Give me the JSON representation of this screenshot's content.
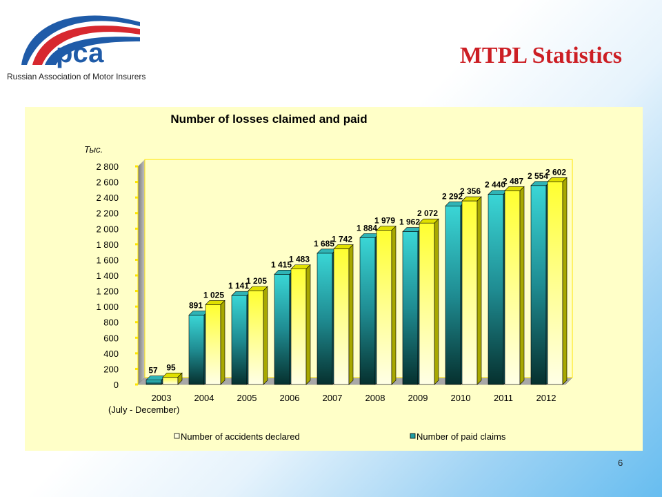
{
  "header": {
    "logo_text": "рса",
    "logo_caption": "Russian Association of Motor Insurers",
    "slide_title": "MTPL Statistics"
  },
  "footer": {
    "page_number": "6"
  },
  "colors": {
    "title_red": "#cc1e24",
    "chart_background": "#ffffc8",
    "declared_series": "#ffff33",
    "paid_series": "#33c8c8"
  },
  "chart_data": {
    "type": "bar",
    "title": "Number of losses claimed and paid",
    "ylabel": "Тыс.",
    "xlabel": "",
    "ylim": [
      0,
      2800
    ],
    "yticks": [
      0,
      200,
      400,
      600,
      800,
      1000,
      1200,
      1400,
      1600,
      1800,
      2000,
      2200,
      2400,
      2600,
      2800
    ],
    "ytick_labels": [
      "0",
      "200",
      "400",
      "600",
      "800",
      "1 000",
      "1 200",
      "1 400",
      "1 600",
      "1 800",
      "2 000",
      "2 200",
      "2 400",
      "2 600",
      "2 800"
    ],
    "categories": [
      "2003",
      "2004",
      "2005",
      "2006",
      "2007",
      "2008",
      "2009",
      "2010",
      "2011",
      "2012"
    ],
    "category_note": "(July - December)",
    "series": [
      {
        "name": "Number of paid claims",
        "values": [
          57,
          891,
          1141,
          1415,
          1685,
          1884,
          1962,
          2292,
          2440,
          2554
        ],
        "labels": [
          "57",
          "891",
          "1 141",
          "1 415",
          "1 685",
          "1 884",
          "1 962",
          "2 292",
          "2 440",
          "2 554"
        ]
      },
      {
        "name": "Number of accidents declared",
        "values": [
          95,
          1025,
          1205,
          1483,
          1742,
          1979,
          2072,
          2356,
          2487,
          2602
        ],
        "labels": [
          "95",
          "1 025",
          "1 205",
          "1 483",
          "1 742",
          "1 979",
          "2 072",
          "2 356",
          "2 487",
          "2 602"
        ]
      }
    ],
    "legend": [
      "Number of accidents declared",
      "Number of paid claims"
    ],
    "legend_position": "bottom",
    "grid": false
  }
}
